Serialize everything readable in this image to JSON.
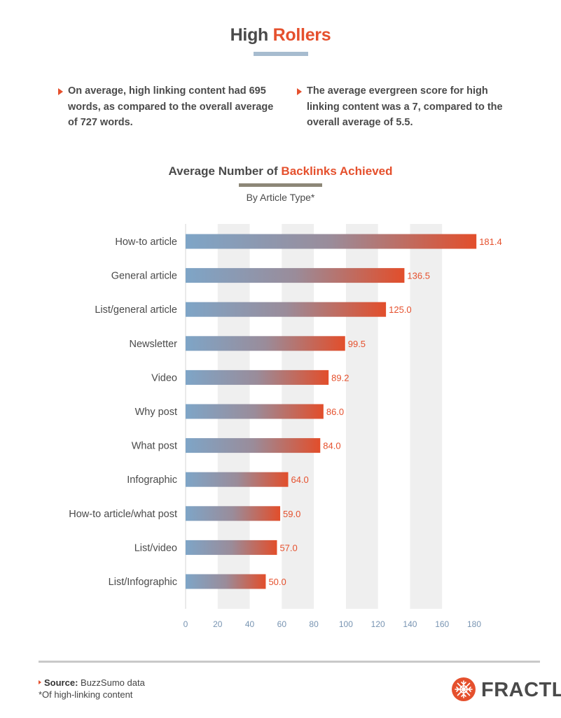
{
  "header": {
    "title_part1": "High",
    "title_part2": "Rollers"
  },
  "bullets": [
    "On average, high linking content had 695 words, as compared to the overall average of 727 words.",
    "The average evergreen score for high linking content was a 7, compared to the overall average of 5.5."
  ],
  "chart_header": {
    "title_part1": "Average Number of",
    "title_part2": "Backlinks Achieved",
    "subtitle": "By Article Type*"
  },
  "chart_data": {
    "type": "bar",
    "orientation": "horizontal",
    "title": "Average Number of Backlinks Achieved",
    "subtitle": "By Article Type*",
    "categories": [
      "How-to article",
      "General article",
      "List/general article",
      "Newsletter",
      "Video",
      "Why post",
      "What post",
      "Infographic",
      "How-to article/what post",
      "List/video",
      "List/Infographic"
    ],
    "values": [
      181.4,
      136.5,
      125.0,
      99.5,
      89.2,
      86.0,
      84.0,
      64.0,
      59.0,
      57.0,
      50.0
    ],
    "value_labels": [
      "181.4",
      "136.5",
      "125.0",
      "99.5",
      "89.2",
      "86.0",
      "84.0",
      "64.0",
      "59.0",
      "57.0",
      "50.0"
    ],
    "xlim": [
      0,
      180
    ],
    "xticks": [
      0,
      20,
      40,
      60,
      80,
      100,
      120,
      140,
      160,
      180
    ],
    "grid": "alternating vertical bands",
    "colors": {
      "bar_start": "#7ea5c7",
      "bar_end": "#e24e2b",
      "band": "#efefef",
      "value_label": "#e5502d",
      "tick_label": "#7894b2"
    }
  },
  "footer": {
    "source_label": "Source:",
    "source_text": " BuzzSumo data",
    "note": "*Of high-linking content",
    "logo_text": "FRACTL",
    "logo_icon": "fractl-logo-icon"
  },
  "colors": {
    "accent": "#e5502d",
    "title_bar": "#a7bccf",
    "chart_title_bar": "#8d8777"
  }
}
